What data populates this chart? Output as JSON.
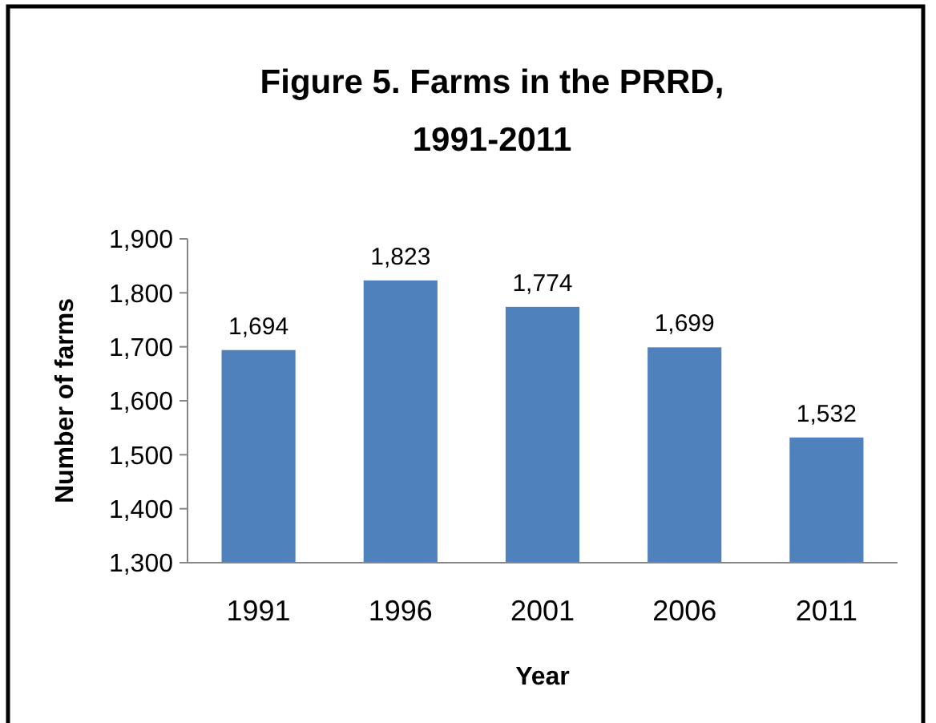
{
  "chart_data": {
    "type": "bar",
    "title": "Figure 5. Farms in the PRRD,\n1991-2011",
    "xlabel": "Year",
    "ylabel": "Number of farms",
    "categories": [
      "1991",
      "1996",
      "2001",
      "2006",
      "2011"
    ],
    "values": [
      1694,
      1823,
      1774,
      1699,
      1532
    ],
    "value_labels": [
      "1,694",
      "1,823",
      "1,774",
      "1,699",
      "1,532"
    ],
    "color": "#4f81bd",
    "ylim": [
      1300,
      1900
    ],
    "yticks": [
      {
        "value": 1300,
        "label": "1,300"
      },
      {
        "value": 1400,
        "label": "1,400"
      },
      {
        "value": 1500,
        "label": "1,500"
      },
      {
        "value": 1600,
        "label": "1,600"
      },
      {
        "value": 1700,
        "label": "1,700"
      },
      {
        "value": 1800,
        "label": "1,800"
      },
      {
        "value": 1900,
        "label": "1,900"
      }
    ],
    "grid": false
  }
}
